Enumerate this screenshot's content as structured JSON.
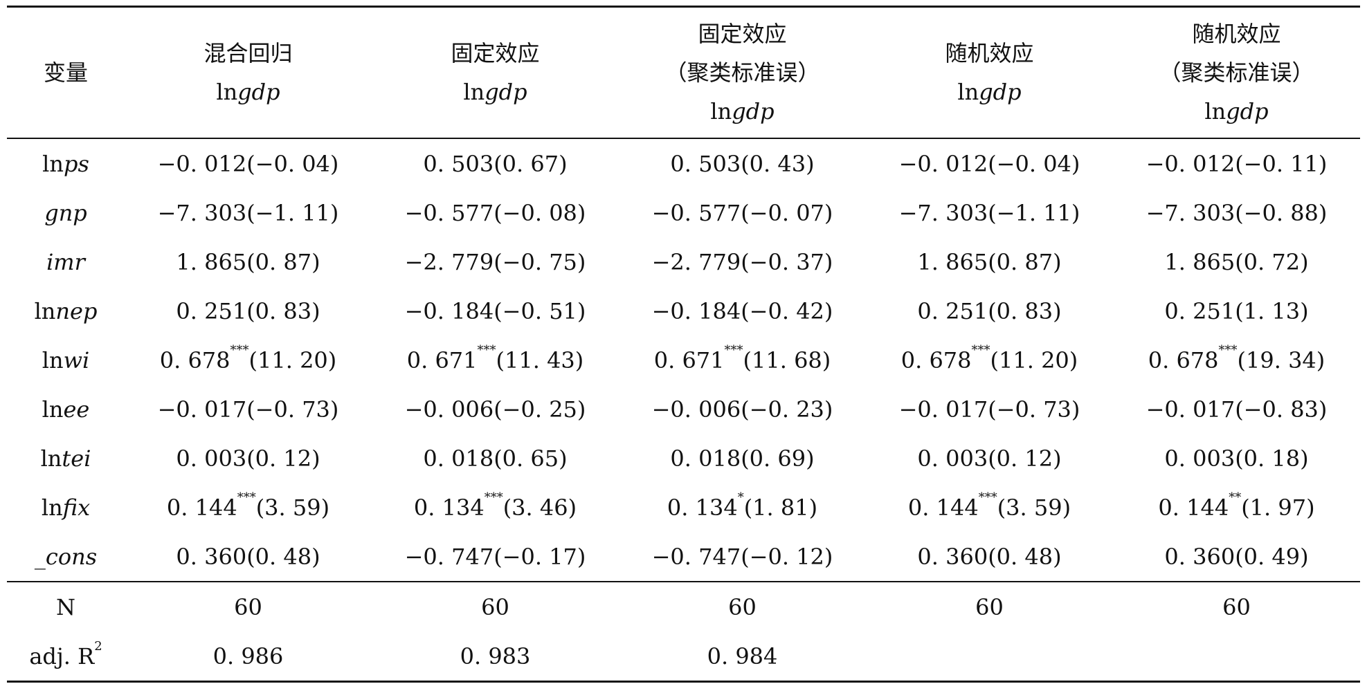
{
  "header": {
    "var_label": "变量",
    "columns": [
      {
        "title": "混合回归",
        "subtitle": "",
        "dep_prefix": "ln",
        "dep_var": "gdp"
      },
      {
        "title": "固定效应",
        "subtitle": "",
        "dep_prefix": "ln",
        "dep_var": "gdp"
      },
      {
        "title": "固定效应",
        "subtitle": "（聚类标准误）",
        "dep_prefix": "ln",
        "dep_var": "gdp"
      },
      {
        "title": "随机效应",
        "subtitle": "",
        "dep_prefix": "ln",
        "dep_var": "gdp"
      },
      {
        "title": "随机效应",
        "subtitle": "（聚类标准误）",
        "dep_prefix": "ln",
        "dep_var": "gdp"
      }
    ]
  },
  "rows": [
    {
      "prefix": "ln",
      "name": "ps",
      "cells": [
        {
          "coef": "−0. 012",
          "stars": "",
          "t": "(−0. 04)"
        },
        {
          "coef": "0. 503",
          "stars": "",
          "t": "(0. 67)"
        },
        {
          "coef": "0. 503",
          "stars": "",
          "t": "(0. 43)"
        },
        {
          "coef": "−0. 012",
          "stars": "",
          "t": "(−0. 04)"
        },
        {
          "coef": "−0. 012",
          "stars": "",
          "t": "(−0. 11)"
        }
      ]
    },
    {
      "prefix": "",
      "name": "gnp",
      "cells": [
        {
          "coef": "−7. 303",
          "stars": "",
          "t": "(−1. 11)"
        },
        {
          "coef": "−0. 577",
          "stars": "",
          "t": "(−0. 08)"
        },
        {
          "coef": "−0. 577",
          "stars": "",
          "t": "(−0. 07)"
        },
        {
          "coef": "−7. 303",
          "stars": "",
          "t": "(−1. 11)"
        },
        {
          "coef": "−7. 303",
          "stars": "",
          "t": "(−0. 88)"
        }
      ]
    },
    {
      "prefix": "",
      "name": "imr",
      "cells": [
        {
          "coef": "1. 865",
          "stars": "",
          "t": "(0. 87)"
        },
        {
          "coef": "−2. 779",
          "stars": "",
          "t": "(−0. 75)"
        },
        {
          "coef": "−2. 779",
          "stars": "",
          "t": "(−0. 37)"
        },
        {
          "coef": "1. 865",
          "stars": "",
          "t": "(0. 87)"
        },
        {
          "coef": "1. 865",
          "stars": "",
          "t": "(0. 72)"
        }
      ]
    },
    {
      "prefix": "ln",
      "name": "nep",
      "cells": [
        {
          "coef": "0. 251",
          "stars": "",
          "t": "(0. 83)"
        },
        {
          "coef": "−0. 184",
          "stars": "",
          "t": "(−0. 51)"
        },
        {
          "coef": "−0. 184",
          "stars": "",
          "t": "(−0. 42)"
        },
        {
          "coef": "0. 251",
          "stars": "",
          "t": "(0. 83)"
        },
        {
          "coef": "0. 251",
          "stars": "",
          "t": "(1. 13)"
        }
      ]
    },
    {
      "prefix": "ln",
      "name": "wi",
      "cells": [
        {
          "coef": "0. 678",
          "stars": "***",
          "t": "(11. 20)"
        },
        {
          "coef": "0. 671",
          "stars": "***",
          "t": "(11. 43)"
        },
        {
          "coef": "0. 671",
          "stars": "***",
          "t": "(11. 68)"
        },
        {
          "coef": "0. 678",
          "stars": "***",
          "t": "(11. 20)"
        },
        {
          "coef": "0. 678",
          "stars": "***",
          "t": "(19. 34)"
        }
      ]
    },
    {
      "prefix": "ln",
      "name": "ee",
      "cells": [
        {
          "coef": "−0. 017",
          "stars": "",
          "t": "(−0. 73)"
        },
        {
          "coef": "−0. 006",
          "stars": "",
          "t": "(−0. 25)"
        },
        {
          "coef": "−0. 006",
          "stars": "",
          "t": "(−0. 23)"
        },
        {
          "coef": "−0. 017",
          "stars": "",
          "t": "(−0. 73)"
        },
        {
          "coef": "−0. 017",
          "stars": "",
          "t": "(−0. 83)"
        }
      ]
    },
    {
      "prefix": "ln",
      "name": "tei",
      "cells": [
        {
          "coef": "0. 003",
          "stars": "",
          "t": "(0. 12)"
        },
        {
          "coef": "0. 018",
          "stars": "",
          "t": "(0. 65)"
        },
        {
          "coef": "0. 018",
          "stars": "",
          "t": "(0. 69)"
        },
        {
          "coef": "0. 003",
          "stars": "",
          "t": "(0. 12)"
        },
        {
          "coef": "0. 003",
          "stars": "",
          "t": "(0. 18)"
        }
      ]
    },
    {
      "prefix": "ln",
      "name": "fix",
      "cells": [
        {
          "coef": "0. 144",
          "stars": "***",
          "t": "(3. 59)"
        },
        {
          "coef": "0. 134",
          "stars": "***",
          "t": "(3. 46)"
        },
        {
          "coef": "0. 134",
          "stars": "*",
          "t": "(1. 81)"
        },
        {
          "coef": "0. 144",
          "stars": "***",
          "t": "(3. 59)"
        },
        {
          "coef": "0. 144",
          "stars": "**",
          "t": "(1. 97)"
        }
      ]
    },
    {
      "prefix": "",
      "name": "_cons",
      "cells": [
        {
          "coef": "0. 360",
          "stars": "",
          "t": "(0. 48)"
        },
        {
          "coef": "−0. 747",
          "stars": "",
          "t": "(−0. 17)"
        },
        {
          "coef": "−0. 747",
          "stars": "",
          "t": "(−0. 12)"
        },
        {
          "coef": "0. 360",
          "stars": "",
          "t": "(0. 48)"
        },
        {
          "coef": "0. 360",
          "stars": "",
          "t": "(0. 49)"
        }
      ]
    }
  ],
  "stats": {
    "n_label": "N",
    "n_values": [
      "60",
      "60",
      "60",
      "60",
      "60"
    ],
    "r2_label": "adj. R",
    "r2_sup": "2",
    "r2_values": [
      "0. 986",
      "0. 983",
      "0. 984",
      "",
      ""
    ]
  }
}
